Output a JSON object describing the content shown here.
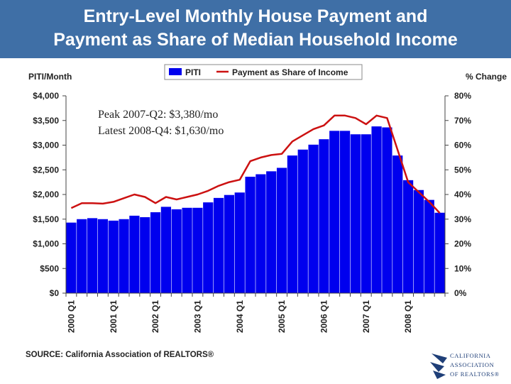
{
  "title": {
    "line1": "Entry-Level Monthly House Payment and",
    "line2": "Payment as Share of Median Household Income"
  },
  "source": "SOURCE: California Association of REALTORS®",
  "logo": {
    "line1": "CALIFORNIA",
    "line2": "ASSOCIATION",
    "line3": "OF REALTORS®"
  },
  "colors": {
    "title_bg": "#3f6fa6",
    "bar": "#0000ee",
    "line": "#cc1111",
    "logo": "#1f3f78"
  },
  "chart_data": {
    "type": "bar",
    "ylabel_left": "PITI/Month",
    "ylabel_right": "% Change",
    "ylim_left": [
      0,
      4000
    ],
    "ylim_right": [
      0,
      80
    ],
    "yticks_left": [
      "$0",
      "$500",
      "$1,000",
      "$1,500",
      "$2,000",
      "$2,500",
      "$3,000",
      "$3,500",
      "$4,000"
    ],
    "yticks_right": [
      "0%",
      "10%",
      "20%",
      "30%",
      "40%",
      "50%",
      "60%",
      "70%",
      "80%"
    ],
    "x_labels": [
      "2000 Q1",
      "2001 Q1",
      "2002 Q1",
      "2003 Q1",
      "2004 Q1",
      "2005 Q1",
      "2006 Q1",
      "2007 Q1",
      "2008 Q1"
    ],
    "categories": [
      "2000 Q1",
      "2000 Q2",
      "2000 Q3",
      "2000 Q4",
      "2001 Q1",
      "2001 Q2",
      "2001 Q3",
      "2001 Q4",
      "2002 Q1",
      "2002 Q2",
      "2002 Q3",
      "2002 Q4",
      "2003 Q1",
      "2003 Q2",
      "2003 Q3",
      "2003 Q4",
      "2004 Q1",
      "2004 Q2",
      "2004 Q3",
      "2004 Q4",
      "2005 Q1",
      "2005 Q2",
      "2005 Q3",
      "2005 Q4",
      "2006 Q1",
      "2006 Q2",
      "2006 Q3",
      "2006 Q4",
      "2007 Q1",
      "2007 Q2",
      "2007 Q3",
      "2007 Q4",
      "2008 Q1",
      "2008 Q2",
      "2008 Q3",
      "2008 Q4"
    ],
    "grid": false,
    "legend_position": "top-center",
    "annotation": {
      "line1": "Peak   2007-Q2:  $3,380/mo",
      "line2": "Latest 2008-Q4:  $1,630/mo"
    },
    "series": [
      {
        "name": "PITI",
        "type": "bar",
        "axis": "left",
        "values": [
          1430,
          1500,
          1520,
          1500,
          1470,
          1500,
          1570,
          1540,
          1640,
          1750,
          1700,
          1730,
          1730,
          1840,
          1930,
          1990,
          2040,
          2360,
          2410,
          2470,
          2540,
          2790,
          2910,
          3010,
          3120,
          3290,
          3290,
          3220,
          3220,
          3380,
          3360,
          2790,
          2290,
          2090,
          1890,
          1630
        ]
      },
      {
        "name": "Payment as Share of Income",
        "type": "line",
        "axis": "right",
        "values": [
          34.5,
          36.5,
          36.5,
          36.3,
          37.0,
          38.5,
          40.0,
          39.0,
          36.5,
          39.0,
          38.0,
          39.0,
          40.0,
          41.5,
          43.5,
          45.0,
          46.0,
          53.5,
          55.0,
          56.0,
          56.5,
          61.5,
          64.0,
          66.5,
          68.0,
          72.0,
          72.0,
          71.0,
          68.5,
          72.0,
          71.0,
          58.0,
          45.0,
          41.0,
          37.0,
          32.5
        ]
      }
    ]
  }
}
